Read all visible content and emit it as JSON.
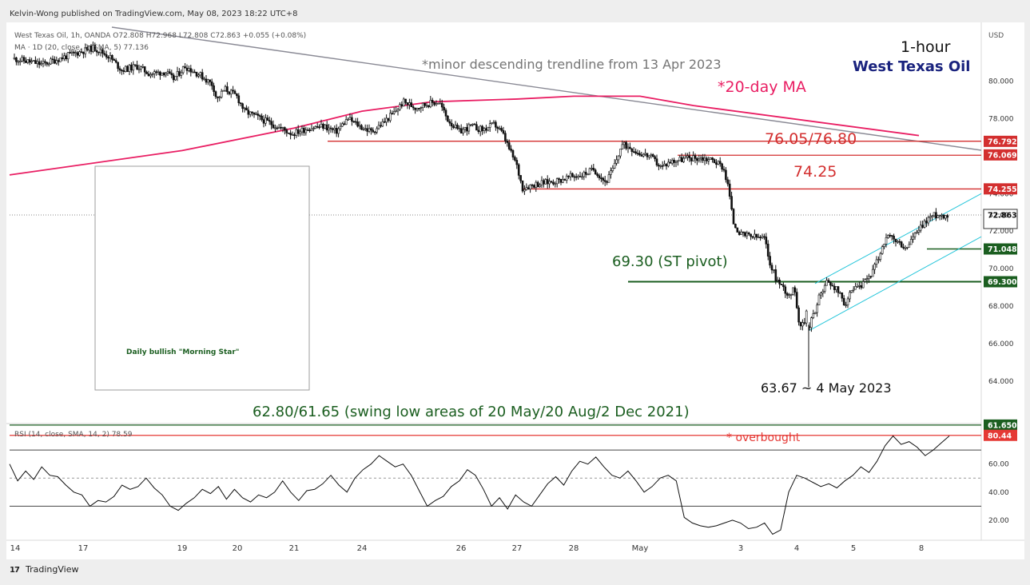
{
  "header": {
    "published": "Kelvin-Wong published on TradingView.com, May 08, 2023 18:22 UTC+8",
    "symbol_line": "West Texas Oil, 1h, OANDA  O72.808  H72.968  L72.808  C72.863  +0.055  (+0.08%)",
    "ma_line": "MA · 1D (20, close, 0, SMA, 5)  77.136",
    "ma_value_color": "#e91e63"
  },
  "footer": {
    "brand": "TradingView"
  },
  "title_block": {
    "timeframe": "1-hour",
    "instrument": "West Texas Oil"
  },
  "chart_data": [
    {
      "type": "candlestick",
      "panel": "price",
      "currency_label": "USD",
      "ylim": [
        61.9,
        82.8
      ],
      "y_ticks": [
        64,
        66,
        68,
        70,
        72,
        74,
        76,
        78,
        80
      ],
      "y_tick_labels": [
        "64.000",
        "66.000",
        "68.000",
        "70.000",
        "72.000",
        "74.000",
        "76.000",
        "78.000",
        "80.000"
      ],
      "x_ticks": [
        "14",
        "17",
        "19",
        "20",
        "21",
        "24",
        "26",
        "27",
        "28",
        "May",
        "3",
        "4",
        "5",
        "8"
      ],
      "last_price": 72.863,
      "last_price_countdown": "37:09",
      "price_tags": [
        {
          "value": 76.792,
          "label": "76.792",
          "color": "#d32f2f"
        },
        {
          "value": 76.069,
          "label": "76.069",
          "color": "#d32f2f"
        },
        {
          "value": 74.255,
          "label": "74.255",
          "color": "#d32f2f"
        },
        {
          "value": 71.048,
          "label": "71.048",
          "color": "#1b5e20"
        },
        {
          "value": 69.3,
          "label": "69.300",
          "color": "#1b5e20"
        },
        {
          "value": 61.65,
          "label": "61.650",
          "color": "#1b5e20"
        }
      ],
      "levels": [
        {
          "value": 76.8,
          "name": "76.80 resistance",
          "color": "#d32f2f"
        },
        {
          "value": 76.05,
          "name": "76.05 resistance",
          "color": "#d32f2f"
        },
        {
          "value": 74.25,
          "name": "74.25 resistance",
          "color": "#d32f2f"
        },
        {
          "value": 69.3,
          "name": "69.30 pivot",
          "color": "#1b5e20"
        },
        {
          "value": 61.65,
          "name": "61.65 support",
          "color": "#1b5e20"
        }
      ],
      "annotations": {
        "trendline": "*minor descending trendline from 13 Apr 2023",
        "ma_label": "*20-day MA",
        "res_label_1": "76.05/76.80",
        "res_label_2": "74.25",
        "pivot_label": "69.30 (ST pivot)",
        "low_label": "63.67 ~ 4 May 2023",
        "swing_label": "62.80/61.65 (swing low areas of 20 May/20 Aug/2 Dec 2021)",
        "inset_caption": "Daily bullish \"Morning Star\""
      },
      "series": [
        {
          "name": "West Texas Oil",
          "close_path": [
            [
              0.0,
              81.2
            ],
            [
              0.035,
              80.9
            ],
            [
              0.07,
              81.4
            ],
            [
              0.1,
              81.8
            ],
            [
              0.12,
              81.3
            ],
            [
              0.135,
              80.6
            ],
            [
              0.155,
              80.8
            ],
            [
              0.17,
              80.4
            ],
            [
              0.19,
              80.5
            ],
            [
              0.2,
              80.1
            ],
            [
              0.215,
              80.8
            ],
            [
              0.235,
              80.3
            ],
            [
              0.25,
              79.8
            ],
            [
              0.255,
              79.0
            ],
            [
              0.265,
              79.6
            ],
            [
              0.28,
              79.2
            ],
            [
              0.29,
              78.4
            ],
            [
              0.31,
              78.0
            ],
            [
              0.33,
              77.6
            ],
            [
              0.35,
              77.2
            ],
            [
              0.37,
              77.5
            ],
            [
              0.39,
              77.6
            ],
            [
              0.405,
              77.3
            ],
            [
              0.42,
              78.0
            ],
            [
              0.435,
              77.6
            ],
            [
              0.45,
              77.3
            ],
            [
              0.465,
              77.8
            ],
            [
              0.48,
              78.4
            ],
            [
              0.49,
              78.9
            ],
            [
              0.505,
              78.6
            ],
            [
              0.52,
              78.8
            ],
            [
              0.535,
              78.9
            ],
            [
              0.545,
              78.0
            ],
            [
              0.56,
              77.3
            ],
            [
              0.575,
              77.6
            ],
            [
              0.59,
              77.4
            ],
            [
              0.605,
              77.7
            ],
            [
              0.615,
              77.2
            ],
            [
              0.625,
              76.2
            ],
            [
              0.632,
              75.6
            ],
            [
              0.64,
              74.3
            ],
            [
              0.655,
              74.5
            ],
            [
              0.67,
              74.6
            ],
            [
              0.685,
              74.7
            ],
            [
              0.7,
              74.9
            ],
            [
              0.715,
              75.0
            ],
            [
              0.73,
              75.3
            ],
            [
              0.745,
              74.6
            ],
            [
              0.755,
              75.4
            ],
            [
              0.765,
              76.6
            ],
            [
              0.775,
              76.5
            ],
            [
              0.785,
              76.2
            ],
            [
              0.8,
              76.0
            ],
            [
              0.815,
              75.4
            ],
            [
              0.825,
              75.7
            ],
            [
              0.835,
              75.8
            ],
            [
              0.85,
              75.9
            ],
            [
              0.865,
              75.9
            ],
            [
              0.88,
              75.8
            ],
            [
              0.893,
              75.4
            ],
            [
              0.9,
              74.2
            ],
            [
              0.905,
              72.5
            ],
            [
              0.915,
              71.8
            ],
            [
              0.93,
              71.7
            ],
            [
              0.945,
              71.6
            ],
            [
              0.95,
              70.5
            ],
            [
              0.96,
              69.4
            ],
            [
              0.968,
              69.0
            ],
            [
              0.975,
              68.6
            ],
            [
              0.983,
              68.9
            ],
            [
              0.988,
              67.2
            ],
            [
              0.994,
              66.9
            ],
            [
              1.0,
              68.3
            ]
          ]
        },
        {
          "name": "West Texas Oil (4 May onward)",
          "close_path": [
            [
              0.0,
              66.9
            ],
            [
              0.04,
              67.8
            ],
            [
              0.08,
              68.7
            ],
            [
              0.12,
              69.3
            ],
            [
              0.17,
              69.1
            ],
            [
              0.22,
              68.6
            ],
            [
              0.25,
              68.1
            ],
            [
              0.29,
              68.6
            ],
            [
              0.33,
              68.9
            ],
            [
              0.37,
              69.0
            ],
            [
              0.41,
              69.4
            ],
            [
              0.45,
              69.8
            ],
            [
              0.49,
              70.5
            ],
            [
              0.53,
              71.4
            ],
            [
              0.57,
              71.7
            ],
            [
              0.61,
              71.5
            ],
            [
              0.65,
              71.3
            ],
            [
              0.69,
              71.0
            ],
            [
              0.73,
              71.6
            ],
            [
              0.77,
              71.9
            ],
            [
              0.81,
              72.3
            ],
            [
              0.85,
              72.7
            ],
            [
              0.89,
              72.86
            ]
          ]
        },
        {
          "name": "MA 1D (20, close, 0, SMA, 5)",
          "x": [
            "start",
            "~19",
            "~21",
            "~24",
            "~26",
            "27",
            "~28",
            "May",
            "~2",
            "3"
          ],
          "values": [
            75.0,
            76.3,
            77.5,
            78.4,
            78.9,
            79.05,
            79.2,
            79.2,
            78.7,
            77.1
          ]
        }
      ]
    },
    {
      "type": "line",
      "panel": "rsi",
      "legend": "RSI (14, close, SMA, 14, 2)  78.59",
      "ylim": [
        8,
        86
      ],
      "y_ticks": [
        20,
        40,
        60
      ],
      "y_tick_labels": [
        "20.00",
        "40.00",
        "60.00"
      ],
      "bands": [
        30,
        50,
        70
      ],
      "overbought_level": 80.44,
      "overbought_label": "* overbought",
      "overbought_tag": "80.44",
      "series": [
        {
          "name": "RSI",
          "values": [
            60,
            48,
            55,
            49,
            58,
            52,
            51,
            45,
            40,
            38,
            30,
            34,
            33,
            37,
            45,
            42,
            44,
            50,
            43,
            38,
            30,
            27,
            32,
            36,
            42,
            39,
            44,
            35,
            42,
            36,
            33,
            38,
            36,
            40,
            48,
            40,
            34,
            41,
            42,
            46,
            52,
            45,
            40,
            50,
            56,
            60,
            66,
            62,
            58,
            60,
            52,
            41,
            30,
            34,
            37,
            44,
            48,
            56,
            52,
            42,
            30,
            36,
            28,
            38,
            33,
            30,
            38,
            46,
            51,
            45,
            55,
            62,
            60,
            65,
            58,
            52,
            50,
            55,
            48,
            40,
            44,
            50,
            52,
            48,
            22,
            18,
            16,
            15,
            16,
            18,
            20,
            18,
            14,
            15,
            18,
            10,
            13,
            40,
            52,
            50,
            47,
            44,
            46,
            43,
            48,
            52,
            58,
            54,
            62,
            73,
            80,
            74,
            76,
            72,
            66,
            70,
            75,
            80
          ]
        }
      ]
    }
  ]
}
